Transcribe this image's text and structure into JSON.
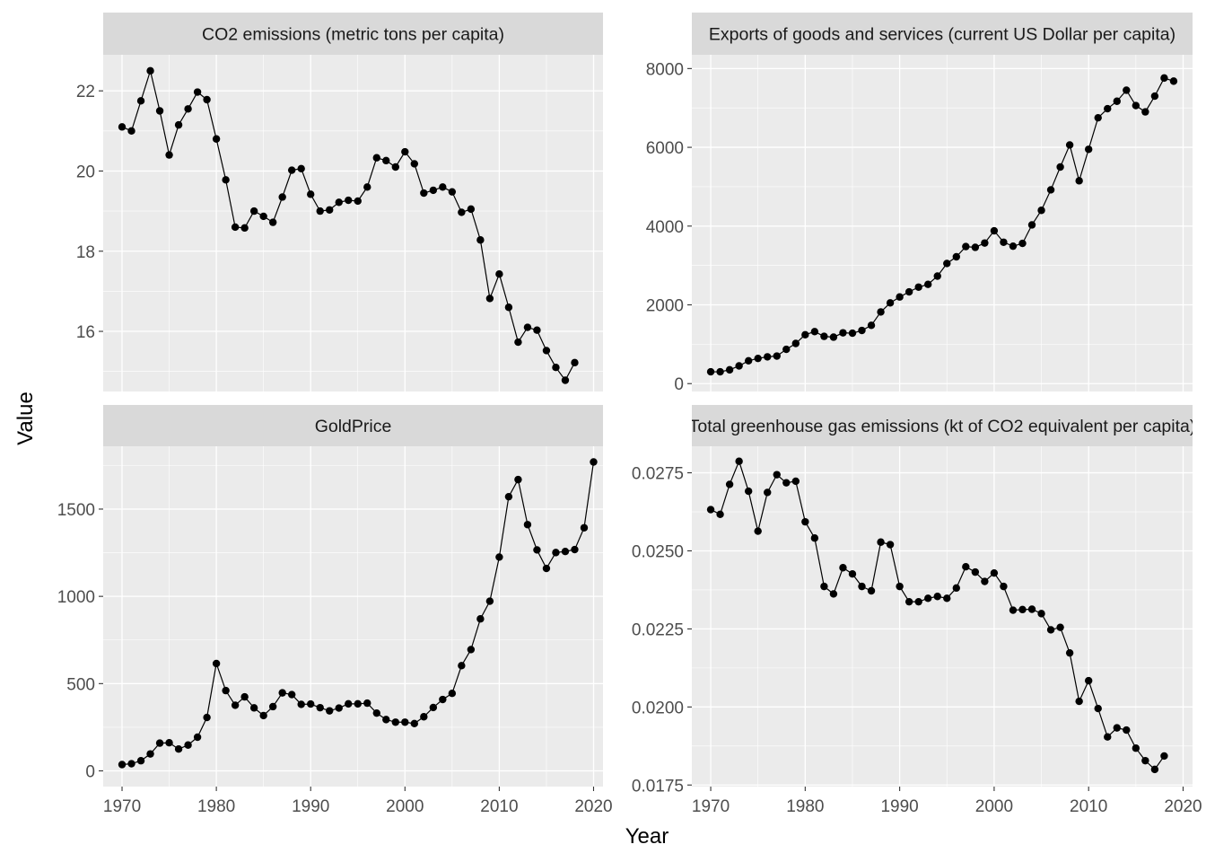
{
  "chart_data": {
    "type": "line",
    "facet_layout": "2x2",
    "xlabel": "Year",
    "ylabel": "Value",
    "xlim": [
      1968,
      2021
    ],
    "x_ticks": [
      1970,
      1980,
      1990,
      2000,
      2010,
      2020
    ],
    "grid": true,
    "markers": "points",
    "facets": [
      {
        "title": "CO2 emissions (metric tons per capita)",
        "ylim": [
          14.5,
          22.9
        ],
        "y_ticks": [
          16,
          18,
          20,
          22
        ],
        "y_tick_labels": [
          "16",
          "18",
          "20",
          "22"
        ],
        "x": [
          1970,
          1971,
          1972,
          1973,
          1974,
          1975,
          1976,
          1977,
          1978,
          1979,
          1980,
          1981,
          1982,
          1983,
          1984,
          1985,
          1986,
          1987,
          1988,
          1989,
          1990,
          1991,
          1992,
          1993,
          1994,
          1995,
          1996,
          1997,
          1998,
          1999,
          2000,
          2001,
          2002,
          2003,
          2004,
          2005,
          2006,
          2007,
          2008,
          2009,
          2010,
          2011,
          2012,
          2013,
          2014,
          2015,
          2016,
          2017,
          2018
        ],
        "y": [
          21.1,
          21.0,
          21.75,
          22.5,
          21.5,
          20.4,
          21.15,
          21.55,
          21.97,
          21.78,
          20.8,
          19.78,
          18.6,
          18.58,
          19.0,
          18.87,
          18.72,
          19.35,
          20.02,
          20.06,
          19.42,
          19.0,
          19.03,
          19.22,
          19.27,
          19.25,
          19.6,
          20.33,
          20.26,
          20.1,
          20.48,
          20.18,
          19.45,
          19.52,
          19.6,
          19.48,
          18.97,
          19.05,
          18.28,
          16.82,
          17.43,
          16.6,
          15.73,
          16.1,
          16.03,
          15.52,
          15.1,
          14.78,
          15.22
        ]
      },
      {
        "title": "Exports of goods and services (current US Dollar per capita)",
        "ylim": [
          -200,
          8350
        ],
        "y_ticks": [
          0,
          2000,
          4000,
          6000,
          8000
        ],
        "y_tick_labels": [
          "0",
          "2000",
          "4000",
          "6000",
          "8000"
        ],
        "x": [
          1970,
          1971,
          1972,
          1973,
          1974,
          1975,
          1976,
          1977,
          1978,
          1979,
          1980,
          1981,
          1982,
          1983,
          1984,
          1985,
          1986,
          1987,
          1988,
          1989,
          1990,
          1991,
          1992,
          1993,
          1994,
          1995,
          1996,
          1997,
          1998,
          1999,
          2000,
          2001,
          2002,
          2003,
          2004,
          2005,
          2006,
          2007,
          2008,
          2009,
          2010,
          2011,
          2012,
          2013,
          2014,
          2015,
          2016,
          2017,
          2018,
          2019
        ],
        "y": [
          300,
          300,
          350,
          450,
          580,
          640,
          680,
          700,
          870,
          1020,
          1240,
          1320,
          1200,
          1180,
          1290,
          1280,
          1350,
          1480,
          1820,
          2050,
          2200,
          2330,
          2450,
          2520,
          2730,
          3050,
          3220,
          3480,
          3460,
          3570,
          3880,
          3590,
          3490,
          3560,
          4030,
          4400,
          4920,
          5500,
          6060,
          5150,
          5950,
          6750,
          6980,
          7170,
          7450,
          7060,
          6900,
          7300,
          7760,
          7680
        ]
      },
      {
        "title": "GoldPrice",
        "ylim": [
          -90,
          1860
        ],
        "y_ticks": [
          0,
          500,
          1000,
          1500
        ],
        "y_tick_labels": [
          "0",
          "500",
          "1000",
          "1500"
        ],
        "x": [
          1970,
          1971,
          1972,
          1973,
          1974,
          1975,
          1976,
          1977,
          1978,
          1979,
          1980,
          1981,
          1982,
          1983,
          1984,
          1985,
          1986,
          1987,
          1988,
          1989,
          1990,
          1991,
          1992,
          1993,
          1994,
          1995,
          1996,
          1997,
          1998,
          1999,
          2000,
          2001,
          2002,
          2003,
          2004,
          2005,
          2006,
          2007,
          2008,
          2009,
          2010,
          2011,
          2012,
          2013,
          2014,
          2015,
          2016,
          2017,
          2018,
          2019,
          2020
        ],
        "y": [
          36,
          41,
          58,
          97,
          159,
          161,
          125,
          148,
          193,
          306,
          615,
          460,
          376,
          424,
          361,
          317,
          368,
          447,
          437,
          381,
          383,
          362,
          344,
          360,
          384,
          384,
          388,
          331,
          294,
          279,
          279,
          271,
          310,
          363,
          409,
          444,
          603,
          695,
          871,
          972,
          1225,
          1571,
          1669,
          1411,
          1266,
          1160,
          1251,
          1257,
          1268,
          1393,
          1770
        ]
      },
      {
        "title": "Total greenhouse gas emissions (kt of CO2 equivalent per capita)",
        "ylim": [
          0.01745,
          0.02835
        ],
        "y_ticks": [
          0.0175,
          0.02,
          0.0225,
          0.025,
          0.0275
        ],
        "y_tick_labels": [
          "0.0175",
          "0.0200",
          "0.0225",
          "0.0250",
          "0.0275"
        ],
        "x": [
          1970,
          1971,
          1972,
          1973,
          1974,
          1975,
          1976,
          1977,
          1978,
          1979,
          1980,
          1981,
          1982,
          1983,
          1984,
          1985,
          1986,
          1987,
          1988,
          1989,
          1990,
          1991,
          1992,
          1993,
          1994,
          1995,
          1996,
          1997,
          1998,
          1999,
          2000,
          2001,
          2002,
          2003,
          2004,
          2005,
          2006,
          2007,
          2008,
          2009,
          2010,
          2011,
          2012,
          2013,
          2014,
          2015,
          2016,
          2017,
          2018
        ],
        "y": [
          0.02632,
          0.02617,
          0.02713,
          0.02787,
          0.02691,
          0.02563,
          0.02687,
          0.02744,
          0.02718,
          0.02723,
          0.02593,
          0.02541,
          0.02386,
          0.02362,
          0.02446,
          0.02426,
          0.02386,
          0.02372,
          0.02528,
          0.0252,
          0.02386,
          0.02337,
          0.02337,
          0.02348,
          0.02354,
          0.02348,
          0.02381,
          0.02449,
          0.02432,
          0.02402,
          0.02429,
          0.02386,
          0.0231,
          0.02312,
          0.02313,
          0.02299,
          0.02247,
          0.02255,
          0.02173,
          0.02018,
          0.02084,
          0.01995,
          0.01904,
          0.01933,
          0.01926,
          0.01868,
          0.01828,
          0.018,
          0.01843
        ]
      }
    ]
  }
}
